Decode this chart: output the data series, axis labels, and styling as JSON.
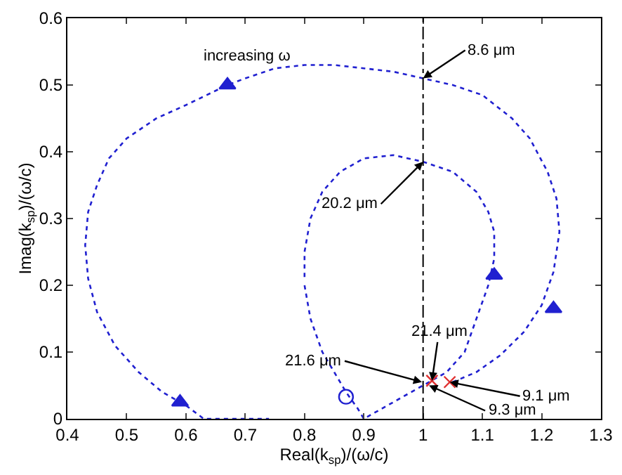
{
  "chart_data": {
    "type": "line",
    "xlabel": "Real(k$_{sp}$)/(ω/c)",
    "ylabel": "Imag(k$_{sp}$)/(ω/c)",
    "xlim": [
      0.4,
      1.3
    ],
    "xticks": [
      0.4,
      0.5,
      0.6,
      0.7,
      0.8,
      0.9,
      1,
      1.1,
      1.2,
      1.3
    ],
    "ylim": [
      0,
      0.6
    ],
    "yticks": [
      0,
      0.1,
      0.2,
      0.3,
      0.4,
      0.5,
      0.6
    ],
    "line_style": "dotted",
    "series": [
      {
        "color": "#2020d0",
        "marker": "none",
        "x": [
          1.05,
          1.09,
          1.13,
          1.17,
          1.2,
          1.22,
          1.23,
          1.225,
          1.21,
          1.18,
          1.15,
          1.1,
          1.05,
          1.0,
          0.95,
          0.9,
          0.85,
          0.8,
          0.75,
          0.7,
          0.67,
          0.6,
          0.55,
          0.5,
          0.47,
          0.45,
          0.435,
          0.43,
          0.435,
          0.45,
          0.48,
          0.52,
          0.56,
          0.6,
          0.63,
          0.68,
          0.74
        ],
        "values": [
          0.055,
          0.07,
          0.095,
          0.13,
          0.17,
          0.22,
          0.28,
          0.33,
          0.37,
          0.42,
          0.45,
          0.485,
          0.5,
          0.51,
          0.52,
          0.525,
          0.53,
          0.53,
          0.525,
          0.51,
          0.5,
          0.47,
          0.45,
          0.42,
          0.39,
          0.35,
          0.31,
          0.26,
          0.21,
          0.16,
          0.11,
          0.07,
          0.04,
          0.02,
          0,
          0,
          0
        ]
      },
      {
        "color": "#2020d0",
        "marker": "none",
        "x": [
          0.8,
          0.81,
          0.83,
          0.85,
          0.87,
          0.89,
          0.9,
          0.93,
          0.96,
          0.99,
          1.01,
          1.04,
          1.07,
          1.09,
          1.11,
          1.12,
          1.12,
          1.11,
          1.09,
          1.05,
          1.0,
          0.95,
          0.9,
          0.86,
          0.83,
          0.81,
          0.8,
          0.8
        ],
        "values": [
          0.2,
          0.15,
          0.1,
          0.07,
          0.04,
          0.015,
          0,
          0.015,
          0.03,
          0.045,
          0.055,
          0.07,
          0.1,
          0.15,
          0.2,
          0.24,
          0.28,
          0.31,
          0.34,
          0.37,
          0.385,
          0.395,
          0.39,
          0.37,
          0.34,
          0.3,
          0.25,
          0.21
        ]
      },
      {
        "type": "scatter",
        "color": "#2020d0",
        "marker": "triangle",
        "x": [
          0.59,
          0.67,
          1.12,
          1.22
        ],
        "values": [
          0.025,
          0.5,
          0.215,
          0.165
        ]
      },
      {
        "type": "scatter",
        "color": "#2020d0",
        "marker": "circle",
        "x": [
          0.87
        ],
        "values": [
          0.033
        ]
      },
      {
        "type": "scatter",
        "color": "#e03030",
        "marker": "cross",
        "x": [
          1.015,
          1.045
        ],
        "values": [
          0.057,
          0.055
        ]
      }
    ],
    "ref_lines": [
      {
        "axis": "x",
        "value": 1,
        "color": "#000000",
        "line_style": "dashdot"
      }
    ],
    "annotations": [
      "increasing ω",
      {
        "text": "8.6 μm",
        "x": 1.0,
        "y": 0.51
      },
      {
        "text": "20.2 μm",
        "x": 1.0,
        "y": 0.385
      },
      {
        "text": "21.4 μm",
        "x": 1.015,
        "y": 0.057
      },
      {
        "text": "21.6 μm",
        "x": 0.998,
        "y": 0.055
      },
      {
        "text": "9.3 μm",
        "x": 1.01,
        "y": 0.05
      },
      {
        "text": "9.1 μm",
        "x": 1.045,
        "y": 0.055
      }
    ]
  }
}
